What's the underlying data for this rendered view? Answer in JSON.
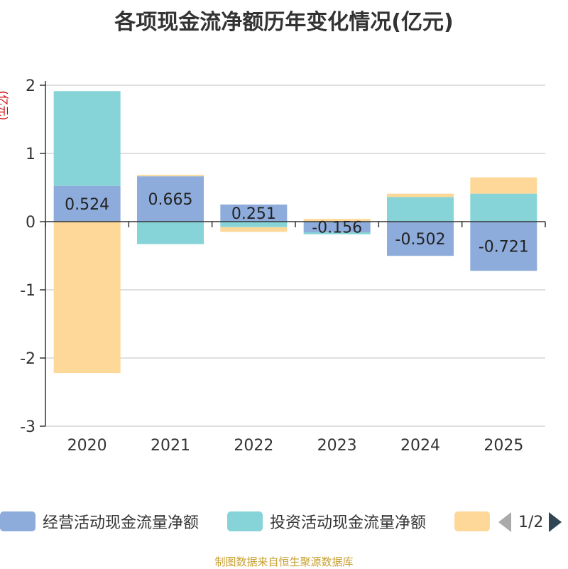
{
  "title": "各项现金流净额历年变化情况(亿元)",
  "unit_label": "(亿元)",
  "legend": {
    "items": [
      {
        "label": "经营活动现金流量净额",
        "color": "#8eacdb"
      },
      {
        "label": "投资活动现金流量净额",
        "color": "#86d4d8"
      },
      {
        "label": "",
        "color": "#fdd899"
      }
    ],
    "page_indicator": "1/2"
  },
  "footer": "制图数据来自恒生聚源数据库",
  "chart_data": {
    "type": "bar",
    "stacked": true,
    "title": "各项现金流净额历年变化情况(亿元)",
    "ylabel": "(亿元)",
    "ylim": [
      -3,
      2
    ],
    "yticks": [
      2,
      1,
      0,
      -1,
      -2,
      -3
    ],
    "categories": [
      "2020",
      "2021",
      "2022",
      "2023",
      "2024",
      "2025"
    ],
    "series": [
      {
        "name": "经营活动现金流量净额",
        "color": "#8eacdb",
        "values": [
          0.524,
          0.665,
          0.251,
          -0.156,
          -0.502,
          -0.721
        ],
        "show_labels": true
      },
      {
        "name": "投资活动现金流量净额",
        "color": "#86d4d8",
        "values": [
          1.39,
          -0.33,
          -0.08,
          -0.03,
          0.36,
          0.41
        ]
      },
      {
        "name": "",
        "color": "#fdd899",
        "values": [
          -2.22,
          0.02,
          -0.07,
          0.04,
          0.05,
          0.24
        ]
      }
    ]
  }
}
